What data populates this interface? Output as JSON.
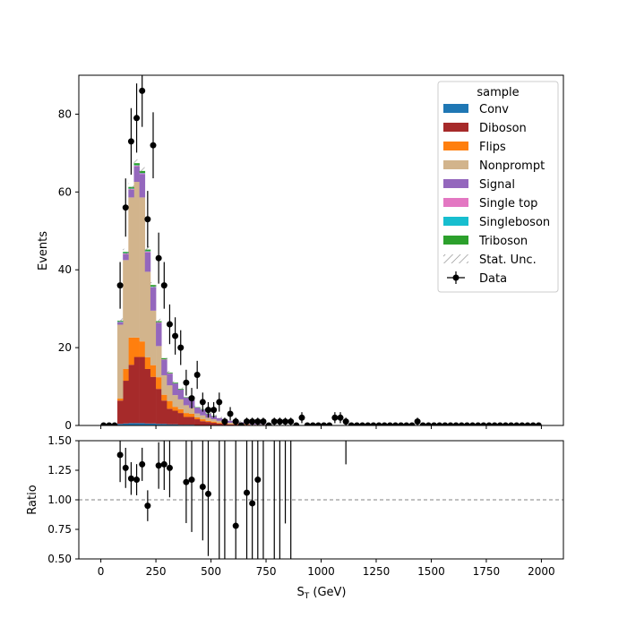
{
  "chart_data": {
    "type": "bar",
    "stacked": true,
    "xlabel": "S_T (GeV)",
    "xlabel_main": "S",
    "xlabel_sub": "T",
    "xlabel_unit": " (GeV)",
    "ylabel": "Events",
    "ratio_ylabel": "Ratio",
    "xlim": [
      -100,
      2100
    ],
    "ylim": [
      0,
      90
    ],
    "ratio_ylim": [
      0.5,
      1.5
    ],
    "x_ticks": [
      0,
      250,
      500,
      750,
      1000,
      1250,
      1500,
      1750,
      2000
    ],
    "x_tick_labels": [
      "0",
      "250",
      "500",
      "750",
      "1000",
      "1250",
      "1500",
      "1750",
      "2000"
    ],
    "y_ticks": [
      0,
      20,
      40,
      60,
      80
    ],
    "y_tick_labels": [
      "0",
      "20",
      "40",
      "60",
      "80"
    ],
    "ratio_y_ticks": [
      0.5,
      0.75,
      1.0,
      1.25,
      1.5
    ],
    "ratio_y_tick_labels": [
      "0.50",
      "0.75",
      "1.00",
      "1.25",
      "1.50"
    ],
    "ratio_reference": 1.0,
    "legend": {
      "title": "sample",
      "placement": "top-right",
      "entries": [
        "Conv",
        "Diboson",
        "Flips",
        "Nonprompt",
        "Signal",
        "Single top",
        "Singleboson",
        "Triboson",
        "Stat. Unc.",
        "Data"
      ]
    },
    "bin_width": 25,
    "bin_start": 75,
    "series": [
      {
        "name": "Conv",
        "color": "#1f77b4",
        "values": [
          0.4,
          0.5,
          0.6,
          0.6,
          0.6,
          0.5,
          0.5,
          0.4,
          0.4,
          0.3,
          0.3,
          0.2,
          0.2,
          0.2,
          0.1,
          0.1,
          0.1,
          0.1,
          0,
          0,
          0,
          0,
          0,
          0,
          0,
          0,
          0,
          0,
          0,
          0
        ]
      },
      {
        "name": "Diboson",
        "color": "#a62a2a",
        "values": [
          6,
          11,
          15,
          17,
          17,
          14,
          12,
          9,
          6,
          4,
          3.5,
          3,
          2,
          2,
          1.5,
          1,
          0.8,
          0.6,
          0.5,
          0.4,
          0.3,
          0.3,
          0.2,
          0.2,
          0.1,
          0.1,
          0.1,
          0.1,
          0,
          0
        ]
      },
      {
        "name": "Flips",
        "color": "#ff7f0e",
        "values": [
          0.5,
          3,
          7,
          5,
          4,
          3,
          3,
          3,
          1.5,
          2,
          1,
          1,
          1,
          0.8,
          0.5,
          0.5,
          0.3,
          0.3,
          0.2,
          0.2,
          0.1,
          0.1,
          0.1,
          0.1,
          0,
          0,
          0,
          0,
          0,
          0
        ]
      },
      {
        "name": "Nonprompt",
        "color": "#d2b48c",
        "values": [
          19,
          28,
          36,
          40,
          37,
          22,
          14,
          8,
          5,
          4,
          3,
          2.5,
          2,
          1.5,
          1,
          1,
          0.8,
          0.6,
          0.5,
          0.4,
          0.3,
          0.3,
          0.2,
          0.2,
          0.1,
          0.1,
          0.1,
          0.1,
          0,
          0
        ]
      },
      {
        "name": "Signal",
        "color": "#9467bd",
        "values": [
          0.6,
          1.5,
          2,
          4,
          6,
          5,
          6,
          6,
          4,
          3,
          3,
          2.5,
          2,
          2,
          1.5,
          1.5,
          1,
          0.8,
          0.7,
          0.5,
          0.5,
          0.4,
          0.3,
          0.3,
          0.2,
          0.2,
          0.1,
          0.1,
          0.1,
          0
        ]
      },
      {
        "name": "Single top",
        "color": "#e377c2",
        "values": [
          0.1,
          0.2,
          0.2,
          0.2,
          0.2,
          0.2,
          0.1,
          0.1,
          0.1,
          0.1,
          0,
          0,
          0,
          0,
          0,
          0,
          0,
          0,
          0,
          0,
          0,
          0,
          0,
          0,
          0,
          0,
          0,
          0,
          0,
          0
        ]
      },
      {
        "name": "Singleboson",
        "color": "#17becf",
        "values": [
          0.1,
          0.1,
          0.1,
          0.1,
          0.1,
          0.1,
          0.1,
          0,
          0,
          0,
          0,
          0,
          0,
          0,
          0,
          0,
          0,
          0,
          0,
          0,
          0,
          0,
          0,
          0,
          0,
          0,
          0,
          0,
          0,
          0
        ]
      },
      {
        "name": "Triboson",
        "color": "#2ca02c",
        "values": [
          0.2,
          0.3,
          0.4,
          0.5,
          0.5,
          0.4,
          0.4,
          0.3,
          0.3,
          0.2,
          0.2,
          0.2,
          0.1,
          0.1,
          0.1,
          0.1,
          0.1,
          0.1,
          0,
          0,
          0,
          0,
          0,
          0,
          0,
          0,
          0,
          0,
          0,
          0
        ]
      }
    ],
    "data_points": {
      "name": "Data",
      "x": [
        12.5,
        37.5,
        62.5,
        87.5,
        112.5,
        137.5,
        162.5,
        187.5,
        212.5,
        237.5,
        262.5,
        287.5,
        312.5,
        337.5,
        362.5,
        387.5,
        412.5,
        437.5,
        462.5,
        487.5,
        512.5,
        537.5,
        562.5,
        587.5,
        612.5,
        637.5,
        662.5,
        687.5,
        712.5,
        737.5,
        762.5,
        787.5,
        812.5,
        837.5,
        862.5,
        887.5,
        912.5,
        937.5,
        962.5,
        987.5,
        1012.5,
        1037.5,
        1062.5,
        1087.5,
        1112.5,
        1137.5,
        1162.5,
        1187.5,
        1212.5,
        1237.5,
        1262.5,
        1287.5,
        1312.5,
        1337.5,
        1362.5,
        1387.5,
        1412.5,
        1437.5,
        1462.5,
        1487.5,
        1512.5,
        1537.5,
        1562.5,
        1587.5,
        1612.5,
        1637.5,
        1662.5,
        1687.5,
        1712.5,
        1737.5,
        1762.5,
        1787.5,
        1812.5,
        1837.5,
        1862.5,
        1887.5,
        1912.5,
        1937.5,
        1962.5,
        1987.5
      ],
      "y": [
        0,
        0,
        0,
        36,
        56,
        73,
        79,
        86,
        53,
        72,
        43,
        36,
        26,
        23,
        20,
        11,
        7,
        13,
        6,
        4,
        4,
        6,
        1,
        3,
        1,
        0,
        1,
        1,
        1,
        1,
        0,
        1,
        1,
        1,
        1,
        0,
        2,
        0,
        0,
        0,
        0,
        0,
        2,
        2,
        1,
        0,
        0,
        0,
        0,
        0,
        0,
        0,
        0,
        0,
        0,
        0,
        0,
        1,
        0,
        0,
        0,
        0,
        0,
        0,
        0,
        0,
        0,
        0,
        0,
        0,
        0,
        0,
        0,
        0,
        0,
        0,
        0,
        0,
        0,
        0
      ]
    },
    "ratio_points": {
      "x": [
        87.5,
        112.5,
        137.5,
        162.5,
        187.5,
        212.5,
        262.5,
        287.5,
        312.5,
        387.5,
        412.5,
        462.5,
        487.5,
        612.5,
        662.5,
        687.5,
        712.5
      ],
      "y": [
        1.38,
        1.27,
        1.18,
        1.17,
        1.3,
        0.95,
        1.29,
        1.3,
        1.27,
        1.15,
        1.17,
        1.11,
        1.05,
        0.78,
        1.06,
        0.97,
        1.17
      ]
    },
    "ratio_bars_no_marker": [
      {
        "x": 537.5,
        "low": 0.5,
        "high": 1.5
      },
      {
        "x": 562.5,
        "low": 0.5,
        "high": 1.5
      },
      {
        "x": 737.5,
        "low": 0.5,
        "high": 1.5
      },
      {
        "x": 787.5,
        "low": 0.5,
        "high": 1.5
      },
      {
        "x": 812.5,
        "low": 0.5,
        "high": 1.5
      },
      {
        "x": 837.5,
        "low": 0.8,
        "high": 1.5
      },
      {
        "x": 862.5,
        "low": 0.5,
        "high": 1.5
      },
      {
        "x": 1112.5,
        "low": 1.3,
        "high": 1.5
      }
    ]
  }
}
